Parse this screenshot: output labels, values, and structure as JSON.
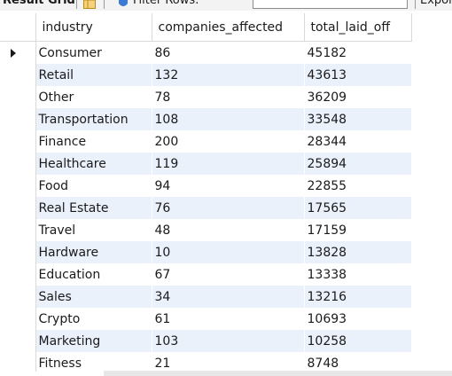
{
  "toolbar": {
    "result_grid_label": "Result Grid",
    "filter_label": "Filter Rows:",
    "export_label": "Export:"
  },
  "grid": {
    "columns": [
      "industry",
      "companies_affected",
      "total_laid_off"
    ],
    "rows": [
      [
        "Consumer",
        "86",
        "45182"
      ],
      [
        "Retail",
        "132",
        "43613"
      ],
      [
        "Other",
        "78",
        "36209"
      ],
      [
        "Transportation",
        "108",
        "33548"
      ],
      [
        "Finance",
        "200",
        "28344"
      ],
      [
        "Healthcare",
        "119",
        "25894"
      ],
      [
        "Food",
        "94",
        "22855"
      ],
      [
        "Real Estate",
        "76",
        "17565"
      ],
      [
        "Travel",
        "48",
        "17159"
      ],
      [
        "Hardware",
        "10",
        "13828"
      ],
      [
        "Education",
        "67",
        "13338"
      ],
      [
        "Sales",
        "34",
        "13216"
      ],
      [
        "Crypto",
        "61",
        "10693"
      ],
      [
        "Marketing",
        "103",
        "10258"
      ],
      [
        "Fitness",
        "21",
        "8748"
      ]
    ],
    "current_row_index": 0
  },
  "colors": {
    "alt_row": "#eaf1fb",
    "grid_line": "#d9d9d9",
    "toolbar_bg": "#f3f3f3"
  },
  "icons": [
    "grid-view-icon",
    "filter-icon",
    "row-pointer-icon"
  ]
}
